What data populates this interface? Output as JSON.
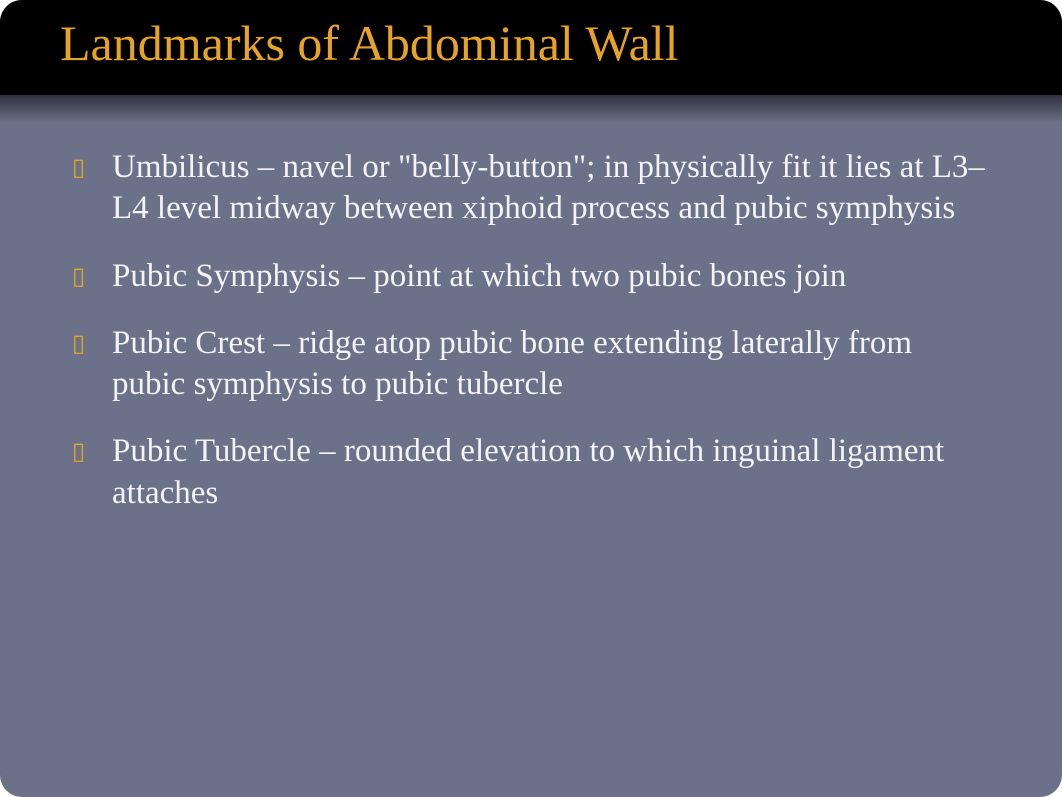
{
  "slide": {
    "title": "Landmarks of Abdominal Wall",
    "title_color": "#e7a323",
    "title_fontsize": 50,
    "background_color": "#6a7189",
    "titlebar_background": "#000000",
    "text_color": "#f4f4f6",
    "bullet_marker_color": "#e7a323",
    "body_fontsize": 33,
    "border_radius": 22,
    "bullets": [
      {
        "text": "Umbilicus – navel or \"belly-button\"; in physically fit it lies at L3–L4 level midway between xiphoid process and pubic symphysis"
      },
      {
        "text": "Pubic Symphysis – point at which two pubic bones join"
      },
      {
        "text": "Pubic Crest – ridge atop pubic bone extending laterally from pubic symphysis to pubic tubercle"
      },
      {
        "text": "Pubic Tubercle – rounded elevation to which inguinal ligament attaches"
      }
    ]
  }
}
